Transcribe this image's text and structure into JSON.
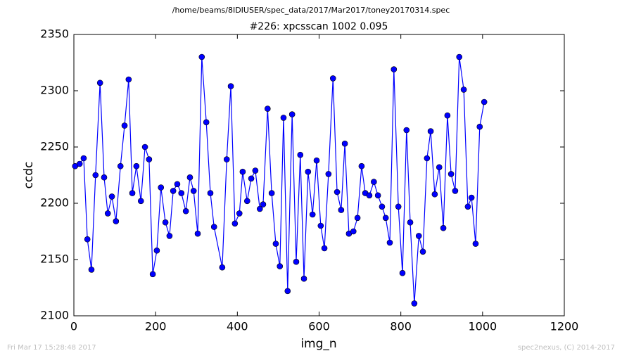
{
  "chart_data": {
    "type": "line",
    "subtitle": "/home/beams/8IDIUSER/spec_data/2017/Mar2017/toney20170314.spec",
    "title": "#226: xpcsscan 1002 0.095",
    "x_label": "img_n",
    "y_label": "ccdc",
    "footer_left": "Fri Mar 17 15:28:48 2017",
    "footer_right": "spec2nexus, (C) 2014-2017",
    "xlim": [
      0,
      1200
    ],
    "xticks": [
      0,
      200,
      400,
      600,
      800,
      1000,
      1200
    ],
    "ylim": [
      2100,
      2350
    ],
    "yticks": [
      2100,
      2150,
      2200,
      2250,
      2300,
      2350
    ],
    "x": [
      3,
      14,
      24,
      33,
      43,
      53,
      64,
      74,
      83,
      93,
      103,
      114,
      124,
      134,
      143,
      153,
      164,
      174,
      184,
      193,
      203,
      213,
      224,
      234,
      243,
      253,
      263,
      274,
      284,
      293,
      303,
      313,
      324,
      334,
      343,
      363,
      374,
      384,
      394,
      405,
      413,
      424,
      434,
      444,
      455,
      463,
      474,
      484,
      494,
      504,
      513,
      523,
      534,
      544,
      554,
      563,
      573,
      584,
      594,
      604,
      613,
      623,
      634,
      644,
      654,
      663,
      673,
      684,
      694,
      704,
      713,
      723,
      734,
      744,
      754,
      763,
      773,
      783,
      794,
      804,
      814,
      823,
      833,
      844,
      854,
      864,
      873,
      883,
      894,
      904,
      914,
      923,
      933,
      943,
      954,
      964,
      973,
      983,
      993,
      1004
    ],
    "series": [
      {
        "name": "ccdc",
        "color": "#0000ff",
        "values": [
          2233,
          2235,
          2240,
          2168,
          2141,
          2225,
          2307,
          2223,
          2191,
          2206,
          2184,
          2233,
          2269,
          2310,
          2209,
          2233,
          2202,
          2250,
          2239,
          2137,
          2158,
          2214,
          2183,
          2171,
          2211,
          2217,
          2209,
          2193,
          2223,
          2211,
          2173,
          2330,
          2272,
          2209,
          2179,
          2143,
          2239,
          2304,
          2182,
          2191,
          2228,
          2202,
          2222,
          2229,
          2195,
          2199,
          2284,
          2209,
          2164,
          2144,
          2276,
          2122,
          2279,
          2148,
          2243,
          2133,
          2228,
          2190,
          2238,
          2180,
          2160,
          2226,
          2311,
          2210,
          2194,
          2253,
          2173,
          2175,
          2187,
          2233,
          2209,
          2207,
          2219,
          2207,
          2197,
          2187,
          2165,
          2319,
          2197,
          2138,
          2265,
          2183,
          2111,
          2171,
          2157,
          2240,
          2264,
          2208,
          2232,
          2178,
          2278,
          2226,
          2211,
          2330,
          2301,
          2197,
          2205,
          2164,
          2268,
          2290
        ]
      }
    ]
  }
}
